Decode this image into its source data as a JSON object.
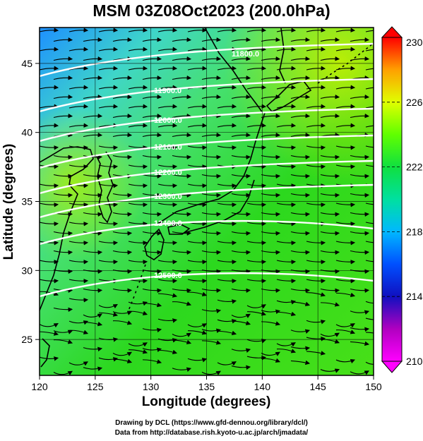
{
  "title": "MSM 03Z08Oct2023 (200.0hPa)",
  "map": {
    "xlabel": "Longitude (degrees)",
    "ylabel": "Latitude  (degrees)",
    "lon_range": [
      120,
      150
    ],
    "lat_range": [
      22.4,
      47.6
    ],
    "lon_ticks": [
      "120",
      "125",
      "130",
      "135",
      "140",
      "145",
      "150"
    ],
    "lat_ticks": [
      "25",
      "30",
      "35",
      "40",
      "45"
    ],
    "field": "temperature (K) shaded, geopotential height contours, streamlines",
    "grid": true
  },
  "colorbar": {
    "min": 210,
    "max": 230,
    "tick_labels": [
      "230",
      "226",
      "222",
      "218",
      "214",
      "210"
    ],
    "colors": [
      "#ff00ff",
      "#c000c0",
      "#0000e0",
      "#0070ff",
      "#00c8ff",
      "#00e0c0",
      "#00e080",
      "#20e000",
      "#a0ff00",
      "#f0f000",
      "#ffb000",
      "#ff4000",
      "#ff0000"
    ]
  },
  "contours": [
    {
      "label": "11800.0"
    },
    {
      "label": "11900.0"
    },
    {
      "label": "12000.0"
    },
    {
      "label": "12100.0"
    },
    {
      "label": "12200.0"
    },
    {
      "label": "12300.0"
    },
    {
      "label": "12400.0"
    },
    {
      "label": "12500.0"
    }
  ],
  "credits": {
    "line1": "Drawing by DCL (https://www.gfd-dennou.org/library/dcl/)",
    "line2": "Data from http://database.rish.kyoto-u.ac.jp/arch/jmadata/"
  }
}
